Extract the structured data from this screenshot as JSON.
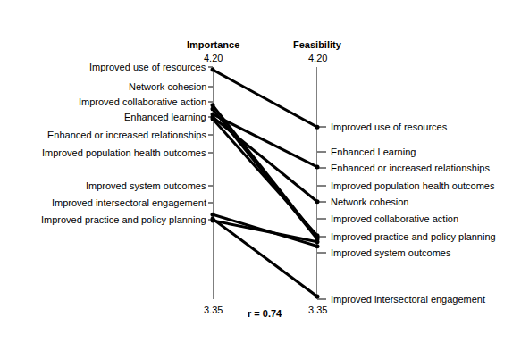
{
  "chart_data": {
    "type": "slope",
    "categories": [
      "Importance",
      "Feasibility"
    ],
    "ylim": [
      3.35,
      4.2
    ],
    "yticks": [
      3.35,
      {
        "value": 4.2,
        "label": "4.20"
      }
    ],
    "color": "#000000",
    "annotations": [
      "r = 0.74"
    ],
    "series": [
      {
        "name": "Improved use of resources",
        "values": [
          4.19,
          3.98
        ]
      },
      {
        "name": "Network cohesion",
        "values": [
          4.06,
          3.576
        ]
      },
      {
        "name": "Improved collaborative action",
        "values": [
          4.046,
          3.57
        ]
      },
      {
        "name": "Enhanced learning",
        "values": [
          4.027,
          3.834
        ]
      },
      {
        "name": "Enhanced or increased relationships",
        "values": [
          4.017,
          3.707
        ]
      },
      {
        "name": "Improved population health outcomes",
        "values": [
          4.01,
          3.583
        ]
      },
      {
        "name": "Improved system outcomes",
        "values": [
          3.66,
          3.544
        ]
      },
      {
        "name": "Improved intersectoral engagement",
        "values": [
          3.644,
          3.36
        ]
      },
      {
        "name": "Improved practice and policy planning",
        "values": [
          3.638,
          3.56
        ]
      }
    ],
    "right_labels": [
      "Improved use of resources",
      "Enhanced Learning",
      "Enhanced or increased relationships",
      "Improved population health outcomes",
      "Network cohesion",
      "Improved collaborative action",
      "Improved practice and policy planning",
      "Improved system outcomes",
      "Improved intersectoral engagement"
    ]
  }
}
